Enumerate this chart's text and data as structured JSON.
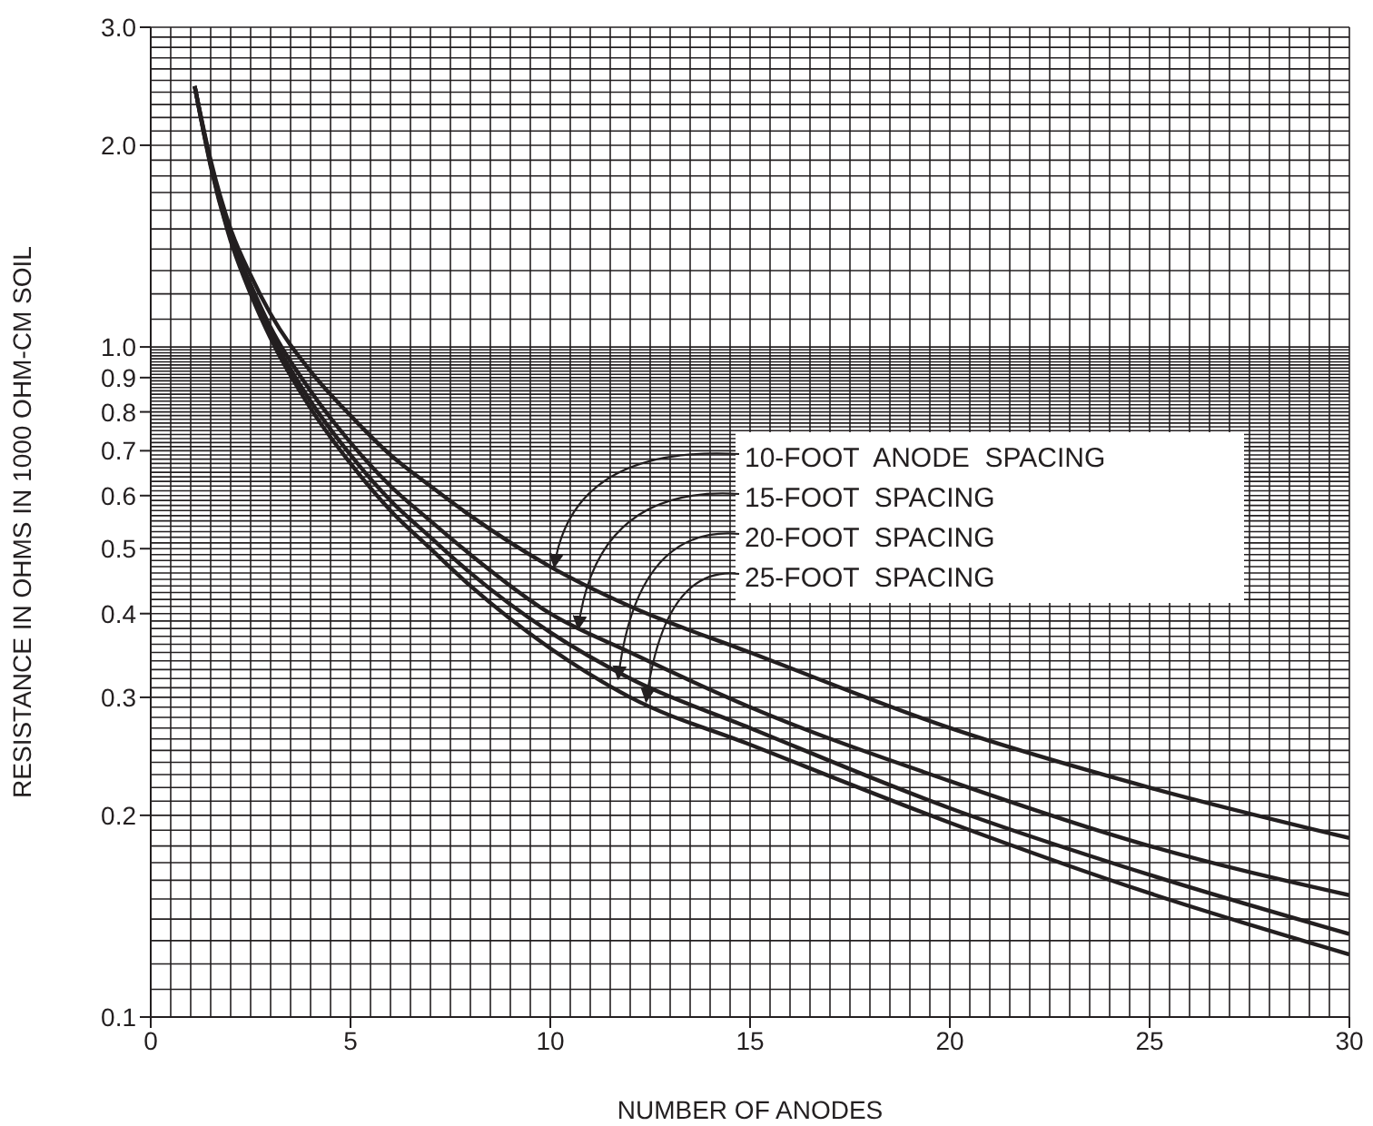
{
  "chart_data": {
    "type": "line",
    "xlabel": "NUMBER  OF  ANODES",
    "ylabel": "RESISTANCE  IN  OHMS  IN  1000  OHM-CM  SOIL",
    "x": [
      1.1,
      1.5,
      2,
      2.5,
      3,
      4,
      5,
      6,
      7,
      8,
      10,
      12,
      15,
      20,
      25,
      30
    ],
    "series": [
      {
        "color": "#231f20",
        "values": [
          2.45,
          1.9,
          1.5,
          1.28,
          1.12,
          0.92,
          0.79,
          0.69,
          0.62,
          0.56,
          0.47,
          0.41,
          0.35,
          0.27,
          0.22,
          0.185
        ]
      },
      {
        "color": "#231f20",
        "values": [
          2.45,
          1.88,
          1.47,
          1.24,
          1.07,
          0.86,
          0.72,
          0.62,
          0.55,
          0.49,
          0.4,
          0.35,
          0.29,
          0.225,
          0.18,
          0.152
        ]
      },
      {
        "color": "#231f20",
        "values": [
          2.45,
          1.87,
          1.45,
          1.22,
          1.05,
          0.83,
          0.69,
          0.59,
          0.52,
          0.46,
          0.375,
          0.32,
          0.27,
          0.205,
          0.163,
          0.133
        ]
      },
      {
        "color": "#231f20",
        "values": [
          2.45,
          1.86,
          1.44,
          1.2,
          1.03,
          0.81,
          0.67,
          0.57,
          0.5,
          0.44,
          0.355,
          0.3,
          0.255,
          0.195,
          0.153,
          0.124
        ]
      }
    ],
    "annotations": [
      {
        "text": "10-FOOT  ANODE  SPACING",
        "x": 10.1,
        "y": 0.47
      },
      {
        "text": "15-FOOT  SPACING",
        "x": 10.7,
        "y": 0.38
      },
      {
        "text": "20-FOOT  SPACING",
        "x": 11.7,
        "y": 0.32
      },
      {
        "text": "25-FOOT  SPACING",
        "x": 12.4,
        "y": 0.296
      }
    ],
    "xlim": [
      0,
      30
    ],
    "xticks": [
      0,
      5,
      10,
      15,
      20,
      25,
      30
    ],
    "ylim": [
      0.1,
      3
    ],
    "yticks": [
      0.1,
      0.2,
      0.3,
      0.4,
      0.5,
      0.6,
      0.7,
      0.8,
      0.9,
      {
        "value": 1,
        "label": "1.0"
      },
      {
        "value": 2,
        "label": "2.0"
      },
      {
        "value": 3,
        "label": "3.0"
      }
    ],
    "log": "y",
    "grid": true,
    "marker": "none",
    "line_style": "solid"
  }
}
